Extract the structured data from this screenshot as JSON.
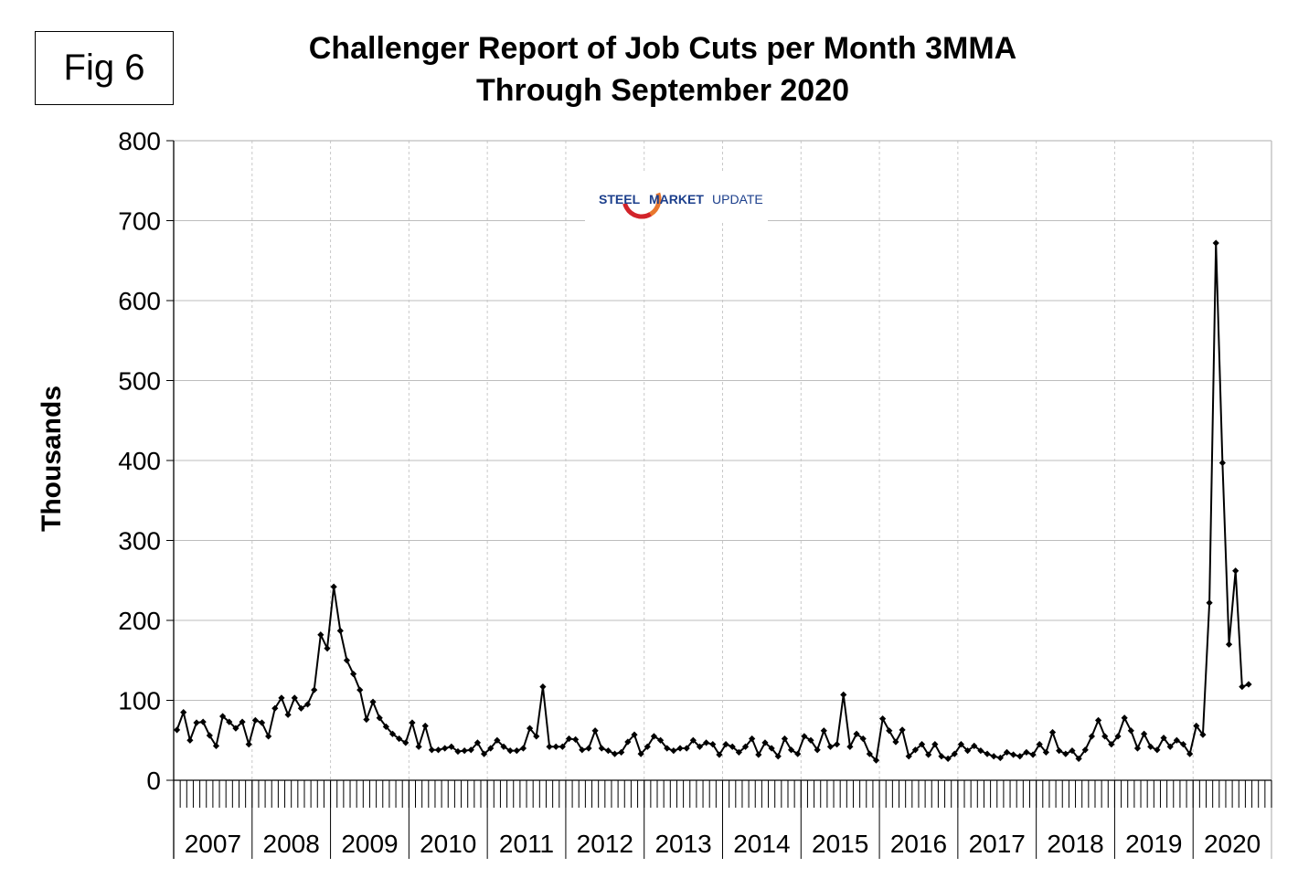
{
  "figure_label": "Fig 6",
  "logo": {
    "name": "steel-market-update-logo",
    "word1": "STEEL",
    "word2": "MARKET",
    "word3": "UPDATE",
    "colors": {
      "navy": "#1c3f8c",
      "orange": "#e8772e",
      "red": "#d2232a"
    }
  },
  "chart_data": {
    "type": "line",
    "title": "Challenger Report of Job Cuts per Month 3MMA",
    "subtitle": "Through September 2020",
    "ylabel": "Thousands",
    "ylim": [
      0,
      800
    ],
    "y_ticks": [
      0,
      100,
      200,
      300,
      400,
      500,
      600,
      700,
      800
    ],
    "x_labels": [
      "2007",
      "2008",
      "2009",
      "2010",
      "2011",
      "2012",
      "2013",
      "2014",
      "2015",
      "2016",
      "2017",
      "2018",
      "2019",
      "2020"
    ],
    "x_start": "2007-01",
    "months_per_year": 12,
    "grid": true,
    "series_color": "#000000",
    "series": [
      {
        "values": [
          63,
          85,
          50,
          72,
          73,
          56,
          43,
          80,
          73,
          65,
          73,
          45,
          75,
          72,
          55,
          90,
          103,
          82,
          103,
          90,
          95,
          113,
          182,
          165,
          242,
          187,
          150,
          133,
          113,
          76,
          98,
          78,
          67,
          58,
          52,
          47,
          72,
          42,
          68,
          38,
          38,
          40,
          42,
          36,
          37,
          38,
          47,
          33,
          40,
          50,
          42,
          37,
          37,
          40,
          65,
          55,
          117,
          42,
          42,
          42,
          52,
          51,
          38,
          40,
          62,
          40,
          37,
          33,
          35,
          48,
          57,
          33,
          42,
          55,
          50,
          40,
          37,
          40,
          40,
          50,
          42,
          47,
          45,
          32,
          45,
          42,
          35,
          42,
          52,
          32,
          47,
          40,
          30,
          52,
          38,
          33,
          55,
          50,
          38,
          62,
          42,
          45,
          107,
          42,
          58,
          52,
          33,
          25,
          77,
          62,
          48,
          63,
          30,
          38,
          45,
          32,
          45,
          30,
          27,
          33,
          45,
          37,
          43,
          37,
          33,
          30,
          28,
          35,
          32,
          30,
          35,
          32,
          45,
          35,
          60,
          37,
          33,
          37,
          27,
          38,
          55,
          75,
          55,
          45,
          55,
          78,
          62,
          40,
          58,
          42,
          38,
          53,
          42,
          50,
          45,
          33,
          68,
          57,
          222,
          672,
          397,
          170,
          262,
          117,
          120
        ]
      }
    ]
  }
}
